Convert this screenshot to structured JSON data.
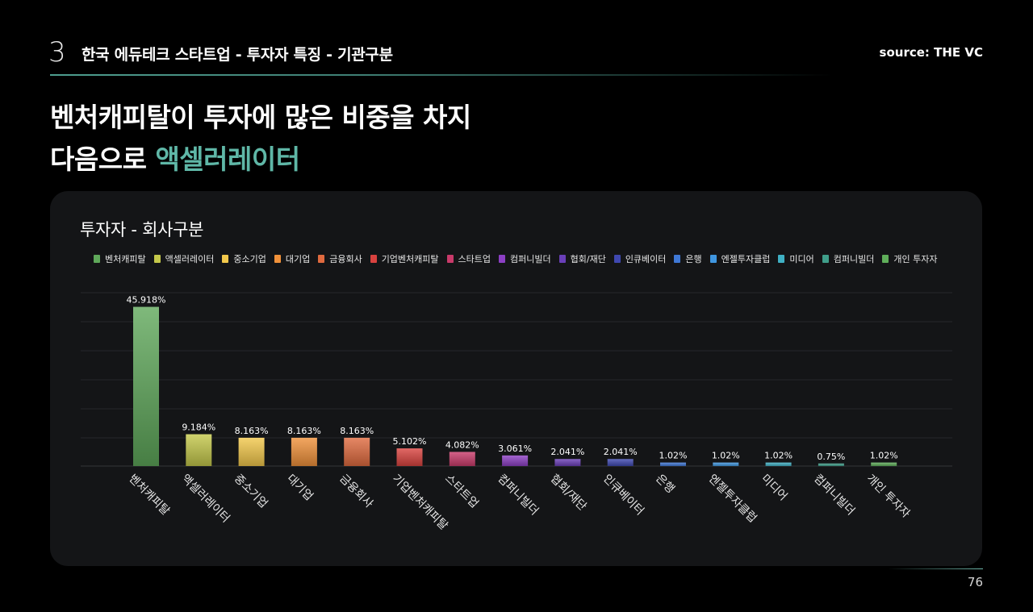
{
  "header": {
    "section_number": "3",
    "section_title": "한국 에듀테크 스타트업 - 투자자 특징 - 기관구분",
    "source": "source: THE VC"
  },
  "headline": {
    "line1": "벤처캐피탈이 투자에 많은 비중을 차지",
    "line2_prefix": "다음으로 ",
    "line2_accent": "액셀러레이터"
  },
  "colors": {
    "accent": "#5fb7a7",
    "background": "#000000",
    "card": "#141517"
  },
  "page_number": "76",
  "chart_data": {
    "type": "bar",
    "title": "투자자 - 회사구분",
    "categories": [
      "벤처캐피탈",
      "액셀러레이터",
      "중소기업",
      "대기업",
      "금융회사",
      "기업벤처캐피탈",
      "스타트업",
      "컴퍼니빌더",
      "협회/재단",
      "인큐베이터",
      "은행",
      "엔젤투자클럽",
      "미디어",
      "컴퍼니빌더",
      "개인 투자자"
    ],
    "values": [
      45.918,
      9.184,
      8.163,
      8.163,
      8.163,
      5.102,
      4.082,
      3.061,
      2.041,
      2.041,
      1.02,
      1.02,
      1.02,
      0.75,
      1.02
    ],
    "value_labels": [
      "45.918%",
      "9.184%",
      "8.163%",
      "8.163%",
      "8.163%",
      "5.102%",
      "4.082%",
      "3.061%",
      "2.041%",
      "2.041%",
      "1.02%",
      "1.02%",
      "1.02%",
      "0.75%",
      "1.02%"
    ],
    "colors": [
      "#5fa85a",
      "#c4c84a",
      "#f2c84b",
      "#f0913a",
      "#e06a3f",
      "#d9423f",
      "#c93a6a",
      "#8c3fc4",
      "#6a3fb8",
      "#3f48b0",
      "#3f78d6",
      "#3f96e0",
      "#3fb0c4",
      "#3f9e8a",
      "#5fae5a"
    ],
    "legend": [
      "벤처캐피탈",
      "액셀러레이터",
      "중소기업",
      "대기업",
      "금융회사",
      "기업벤처캐피탈",
      "스타트업",
      "컴퍼니빌더",
      "협회/재단",
      "인큐베이터",
      "은행",
      "엔젤투자클럽",
      "미디어",
      "컴퍼니빌더",
      "개인 투자자"
    ],
    "legend_position": "top",
    "ylim": [
      0,
      60
    ],
    "grid": true,
    "xlabel": "",
    "ylabel": ""
  }
}
